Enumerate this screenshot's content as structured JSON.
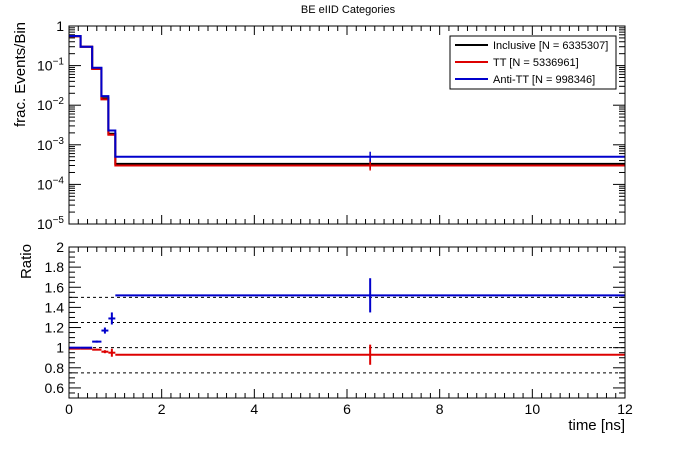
{
  "chart_data": [
    {
      "type": "line",
      "title": "BE eIID Categories",
      "ylabel": "frac. Events/Bin",
      "xlabel": "",
      "xlim": [
        0,
        12
      ],
      "ylim": [
        1e-05,
        1
      ],
      "yscale": "log",
      "grid": false,
      "legend_position": "top-right",
      "y_ticks": [
        {
          "value": 1,
          "label": "1"
        },
        {
          "value": 0.1,
          "base": "10",
          "exp": "−1"
        },
        {
          "value": 0.01,
          "base": "10",
          "exp": "−2"
        },
        {
          "value": 0.001,
          "base": "10",
          "exp": "−3"
        },
        {
          "value": 0.0001,
          "base": "10",
          "exp": "−4"
        },
        {
          "value": 1e-05,
          "base": "10",
          "exp": "−5"
        }
      ],
      "bin_edges": [
        0,
        0.25,
        0.5,
        0.7,
        0.85,
        1.0,
        12
      ],
      "series": [
        {
          "name": "Inclusive [N = 6335307]",
          "color": "#000000",
          "values": [
            0.55,
            0.3,
            0.085,
            0.015,
            0.0019,
            0.00033
          ]
        },
        {
          "name": "TT [N = 5336961]",
          "color": "#dd0000",
          "values": [
            0.55,
            0.3,
            0.082,
            0.014,
            0.0018,
            0.0003
          ]
        },
        {
          "name": "Anti-TT [N = 998346]",
          "color": "#0000cc",
          "values": [
            0.56,
            0.3,
            0.088,
            0.017,
            0.0023,
            0.0005
          ]
        }
      ]
    },
    {
      "type": "line",
      "title": "",
      "xlabel": "time [ns]",
      "ylabel": "Ratio",
      "xlim": [
        0,
        12
      ],
      "ylim": [
        0.5,
        2
      ],
      "grid": false,
      "x_ticks": [
        0,
        2,
        4,
        6,
        8,
        10,
        12
      ],
      "y_ticks": [
        "0.6",
        "0.8",
        "1",
        "1.2",
        "1.4",
        "1.6",
        "1.8",
        "2"
      ],
      "reference_lines": [
        0.75,
        1.0,
        1.25,
        1.5
      ],
      "bin_edges": [
        0,
        0.25,
        0.5,
        0.7,
        0.85,
        1.0,
        12
      ],
      "bin_centers": [
        0.125,
        0.375,
        0.6,
        0.775,
        0.925,
        6.5
      ],
      "series": [
        {
          "name": "TT",
          "color": "#dd0000",
          "values": [
            0.99,
            0.99,
            0.98,
            0.96,
            0.95,
            0.93
          ],
          "errors": [
            0.005,
            0.005,
            0.008,
            0.015,
            0.04,
            0.1
          ]
        },
        {
          "name": "Anti-TT",
          "color": "#0000cc",
          "values": [
            1.0,
            1.0,
            1.06,
            1.17,
            1.29,
            1.52
          ],
          "errors": [
            0.005,
            0.005,
            0.01,
            0.03,
            0.06,
            0.17
          ]
        }
      ]
    }
  ]
}
